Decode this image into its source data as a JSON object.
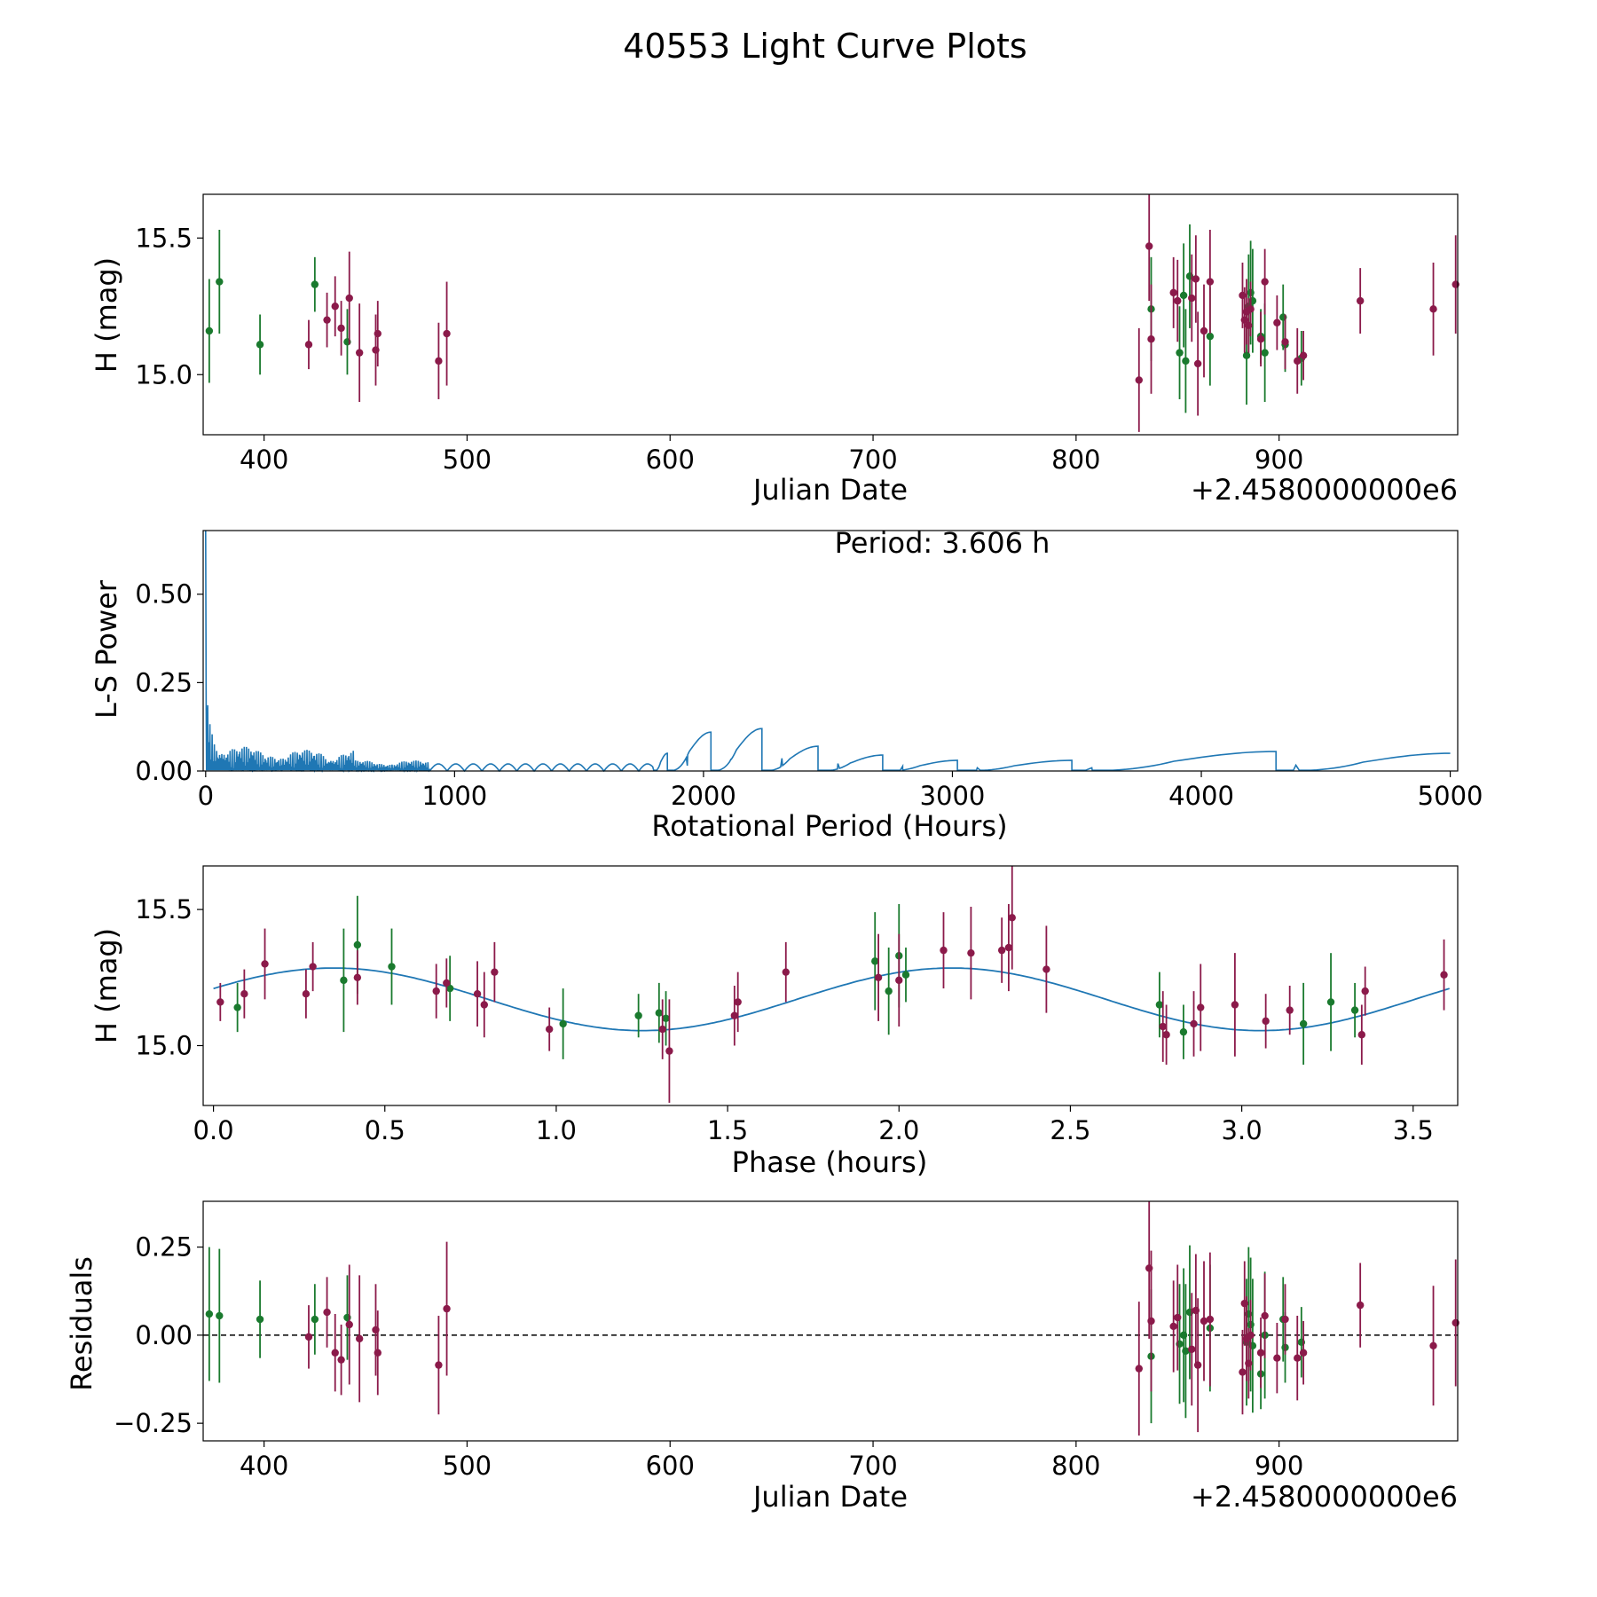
{
  "title": "40553 Light Curve Plots",
  "colors": {
    "maroon": "#8b1a4a",
    "green": "#1a7a2e",
    "line": "#1f77b4",
    "axis": "#000000"
  },
  "chart_data": [
    {
      "id": "lightcurve",
      "type": "scatter",
      "xlabel": "Julian Date",
      "ylabel": "H (mag)",
      "offset_label": "+2.4580000000e6",
      "xlim": [
        370,
        988
      ],
      "ylim": [
        14.78,
        15.66
      ],
      "xticks": [
        400,
        500,
        600,
        700,
        800,
        900
      ],
      "yticks": [
        15.0,
        15.5
      ],
      "ytick_labels": [
        "15.0",
        "15.5"
      ],
      "series": [
        {
          "name": "green",
          "color": "#1a7a2e",
          "points": [
            [
              373,
              15.16,
              0.19
            ],
            [
              378,
              15.34,
              0.19
            ],
            [
              398,
              15.11,
              0.11
            ],
            [
              425,
              15.33,
              0.1
            ],
            [
              441,
              15.12,
              0.12
            ],
            [
              837,
              15.24,
              0.19
            ],
            [
              851,
              15.08,
              0.17
            ],
            [
              853,
              15.29,
              0.19
            ],
            [
              854,
              15.05,
              0.19
            ],
            [
              856,
              15.36,
              0.19
            ],
            [
              866,
              15.14,
              0.18
            ],
            [
              884,
              15.07,
              0.18
            ],
            [
              885,
              15.25,
              0.19
            ],
            [
              886,
              15.3,
              0.19
            ],
            [
              887,
              15.27,
              0.19
            ],
            [
              891,
              15.14,
              0.1
            ],
            [
              893,
              15.08,
              0.18
            ],
            [
              902,
              15.21,
              0.12
            ],
            [
              903,
              15.11,
              0.1
            ],
            [
              911,
              15.06,
              0.1
            ]
          ]
        },
        {
          "name": "maroon",
          "color": "#8b1a4a",
          "points": [
            [
              422,
              15.11,
              0.09
            ],
            [
              431,
              15.2,
              0.1
            ],
            [
              435,
              15.25,
              0.11
            ],
            [
              438,
              15.17,
              0.1
            ],
            [
              442,
              15.28,
              0.17
            ],
            [
              447,
              15.08,
              0.18
            ],
            [
              455,
              15.09,
              0.13
            ],
            [
              456,
              15.15,
              0.12
            ],
            [
              486,
              15.05,
              0.14
            ],
            [
              490,
              15.15,
              0.19
            ],
            [
              831,
              14.98,
              0.19
            ],
            [
              836,
              15.47,
              0.2
            ],
            [
              837,
              15.13,
              0.2
            ],
            [
              848,
              15.3,
              0.13
            ],
            [
              850,
              15.27,
              0.15
            ],
            [
              857,
              15.28,
              0.16
            ],
            [
              859,
              15.35,
              0.16
            ],
            [
              860,
              15.04,
              0.19
            ],
            [
              863,
              15.16,
              0.17
            ],
            [
              866,
              15.34,
              0.19
            ],
            [
              882,
              15.29,
              0.12
            ],
            [
              883,
              15.2,
              0.12
            ],
            [
              884,
              15.23,
              0.12
            ],
            [
              885,
              15.18,
              0.1
            ],
            [
              886,
              15.24,
              0.1
            ],
            [
              891,
              15.13,
              0.1
            ],
            [
              893,
              15.34,
              0.12
            ],
            [
              899,
              15.19,
              0.1
            ],
            [
              903,
              15.12,
              0.1
            ],
            [
              909,
              15.05,
              0.12
            ],
            [
              912,
              15.07,
              0.09
            ],
            [
              940,
              15.27,
              0.12
            ],
            [
              976,
              15.24,
              0.17
            ],
            [
              987,
              15.33,
              0.18
            ]
          ]
        }
      ]
    },
    {
      "id": "periodogram",
      "type": "line",
      "xlabel": "Rotational Period (Hours)",
      "ylabel": "L-S Power",
      "annotation": "Period: 3.606 h",
      "xlim": [
        -10,
        5030
      ],
      "ylim": [
        0,
        0.68
      ],
      "xticks": [
        0,
        1000,
        2000,
        3000,
        4000,
        5000
      ],
      "yticks": [
        0.0,
        0.25,
        0.5
      ],
      "ytick_labels": [
        "0.00",
        "0.25",
        "0.50"
      ],
      "series": [
        {
          "name": "power",
          "color": "#1f77b4",
          "peaks": [
            [
              1855,
              0.05
            ],
            [
              2030,
              0.11
            ],
            [
              2235,
              0.12
            ],
            [
              2460,
              0.07
            ],
            [
              2720,
              0.045
            ],
            [
              3020,
              0.03
            ],
            [
              3480,
              0.03
            ],
            [
              4300,
              0.055
            ],
            [
              5000,
              0.05
            ]
          ]
        }
      ]
    },
    {
      "id": "phased",
      "type": "scatter",
      "xlabel": "Phase (hours)",
      "ylabel": "H (mag)",
      "xlim": [
        -0.03,
        3.63
      ],
      "ylim": [
        14.78,
        15.66
      ],
      "xticks": [
        0.0,
        0.5,
        1.0,
        1.5,
        2.0,
        2.5,
        3.0,
        3.5
      ],
      "xtick_labels": [
        "0.0",
        "0.5",
        "1.0",
        "1.5",
        "2.0",
        "2.5",
        "3.0",
        "3.5"
      ],
      "yticks": [
        15.0,
        15.5
      ],
      "ytick_labels": [
        "15.0",
        "15.5"
      ],
      "model": {
        "mean": 15.17,
        "amplitude": 0.115,
        "period": 1.803,
        "phase_peak": 0.35,
        "color": "#1f77b4"
      },
      "series": [
        {
          "name": "green",
          "color": "#1a7a2e",
          "points": [
            [
              0.07,
              15.14,
              0.09
            ],
            [
              0.38,
              15.24,
              0.19
            ],
            [
              0.42,
              15.37,
              0.18
            ],
            [
              0.52,
              15.29,
              0.14
            ],
            [
              0.69,
              15.21,
              0.12
            ],
            [
              1.02,
              15.08,
              0.13
            ],
            [
              1.24,
              15.11,
              0.08
            ],
            [
              1.3,
              15.12,
              0.11
            ],
            [
              1.32,
              15.1,
              0.1
            ],
            [
              1.93,
              15.31,
              0.18
            ],
            [
              1.97,
              15.2,
              0.16
            ],
            [
              2.0,
              15.33,
              0.19
            ],
            [
              2.02,
              15.26,
              0.1
            ],
            [
              2.76,
              15.15,
              0.12
            ],
            [
              2.83,
              15.05,
              0.1
            ],
            [
              3.18,
              15.08,
              0.15
            ],
            [
              3.26,
              15.16,
              0.18
            ],
            [
              3.33,
              15.13,
              0.1
            ]
          ]
        },
        {
          "name": "maroon",
          "color": "#8b1a4a",
          "points": [
            [
              0.02,
              15.16,
              0.07
            ],
            [
              0.09,
              15.19,
              0.09
            ],
            [
              0.15,
              15.3,
              0.13
            ],
            [
              0.27,
              15.19,
              0.09
            ],
            [
              0.29,
              15.29,
              0.09
            ],
            [
              0.42,
              15.25,
              0.1
            ],
            [
              0.65,
              15.2,
              0.1
            ],
            [
              0.68,
              15.23,
              0.09
            ],
            [
              0.77,
              15.19,
              0.12
            ],
            [
              0.79,
              15.15,
              0.12
            ],
            [
              0.82,
              15.27,
              0.11
            ],
            [
              0.98,
              15.06,
              0.08
            ],
            [
              1.31,
              15.06,
              0.11
            ],
            [
              1.33,
              14.98,
              0.19
            ],
            [
              1.52,
              15.11,
              0.11
            ],
            [
              1.53,
              15.16,
              0.11
            ],
            [
              1.67,
              15.27,
              0.11
            ],
            [
              1.94,
              15.25,
              0.16
            ],
            [
              2.0,
              15.24,
              0.17
            ],
            [
              2.13,
              15.35,
              0.14
            ],
            [
              2.21,
              15.34,
              0.17
            ],
            [
              2.3,
              15.35,
              0.12
            ],
            [
              2.32,
              15.36,
              0.16
            ],
            [
              2.33,
              15.47,
              0.19
            ],
            [
              2.43,
              15.28,
              0.16
            ],
            [
              2.77,
              15.07,
              0.13
            ],
            [
              2.78,
              15.04,
              0.11
            ],
            [
              2.86,
              15.08,
              0.12
            ],
            [
              2.88,
              15.14,
              0.16
            ],
            [
              2.98,
              15.15,
              0.19
            ],
            [
              3.07,
              15.09,
              0.1
            ],
            [
              3.14,
              15.13,
              0.09
            ],
            [
              3.35,
              15.04,
              0.11
            ],
            [
              3.36,
              15.2,
              0.09
            ],
            [
              3.59,
              15.26,
              0.13
            ]
          ]
        }
      ]
    },
    {
      "id": "residuals",
      "type": "scatter",
      "xlabel": "Julian Date",
      "ylabel": "Residuals",
      "offset_label": "+2.4580000000e6",
      "xlim": [
        370,
        988
      ],
      "ylim": [
        -0.3,
        0.38
      ],
      "xticks": [
        400,
        500,
        600,
        700,
        800,
        900
      ],
      "yticks": [
        -0.25,
        0.0,
        0.25
      ],
      "ytick_labels": [
        "−0.25",
        "0.00",
        "0.25"
      ],
      "zero_line": true,
      "series": [
        {
          "name": "green",
          "color": "#1a7a2e",
          "points": [
            [
              373,
              0.06,
              0.19
            ],
            [
              378,
              0.055,
              0.19
            ],
            [
              398,
              0.045,
              0.11
            ],
            [
              425,
              0.045,
              0.1
            ],
            [
              441,
              0.05,
              0.12
            ],
            [
              837,
              -0.06,
              0.19
            ],
            [
              851,
              -0.025,
              0.17
            ],
            [
              853,
              0.0,
              0.19
            ],
            [
              854,
              -0.045,
              0.19
            ],
            [
              856,
              0.065,
              0.19
            ],
            [
              866,
              0.02,
              0.18
            ],
            [
              884,
              -0.02,
              0.18
            ],
            [
              885,
              0.06,
              0.19
            ],
            [
              886,
              0.03,
              0.19
            ],
            [
              887,
              -0.03,
              0.19
            ],
            [
              891,
              -0.11,
              0.1
            ],
            [
              893,
              0.0,
              0.18
            ],
            [
              902,
              0.045,
              0.12
            ],
            [
              903,
              -0.035,
              0.1
            ],
            [
              911,
              -0.02,
              0.1
            ]
          ]
        },
        {
          "name": "maroon",
          "color": "#8b1a4a",
          "points": [
            [
              422,
              -0.005,
              0.09
            ],
            [
              431,
              0.065,
              0.1
            ],
            [
              435,
              -0.05,
              0.11
            ],
            [
              438,
              -0.07,
              0.1
            ],
            [
              442,
              0.03,
              0.17
            ],
            [
              447,
              -0.01,
              0.18
            ],
            [
              455,
              0.015,
              0.13
            ],
            [
              456,
              -0.05,
              0.12
            ],
            [
              486,
              -0.085,
              0.14
            ],
            [
              490,
              0.075,
              0.19
            ],
            [
              831,
              -0.095,
              0.19
            ],
            [
              836,
              0.19,
              0.2
            ],
            [
              837,
              0.04,
              0.2
            ],
            [
              848,
              0.025,
              0.13
            ],
            [
              850,
              0.05,
              0.15
            ],
            [
              857,
              -0.04,
              0.16
            ],
            [
              859,
              0.07,
              0.16
            ],
            [
              860,
              -0.085,
              0.19
            ],
            [
              863,
              0.04,
              0.17
            ],
            [
              866,
              0.045,
              0.19
            ],
            [
              882,
              -0.105,
              0.12
            ],
            [
              883,
              0.09,
              0.12
            ],
            [
              884,
              -0.01,
              0.12
            ],
            [
              885,
              -0.08,
              0.1
            ],
            [
              886,
              0.0,
              0.1
            ],
            [
              891,
              -0.05,
              0.1
            ],
            [
              893,
              0.055,
              0.12
            ],
            [
              899,
              -0.065,
              0.1
            ],
            [
              903,
              0.045,
              0.1
            ],
            [
              909,
              -0.065,
              0.12
            ],
            [
              912,
              -0.05,
              0.09
            ],
            [
              940,
              0.085,
              0.12
            ],
            [
              976,
              -0.03,
              0.17
            ],
            [
              987,
              0.035,
              0.18
            ]
          ]
        }
      ]
    }
  ]
}
